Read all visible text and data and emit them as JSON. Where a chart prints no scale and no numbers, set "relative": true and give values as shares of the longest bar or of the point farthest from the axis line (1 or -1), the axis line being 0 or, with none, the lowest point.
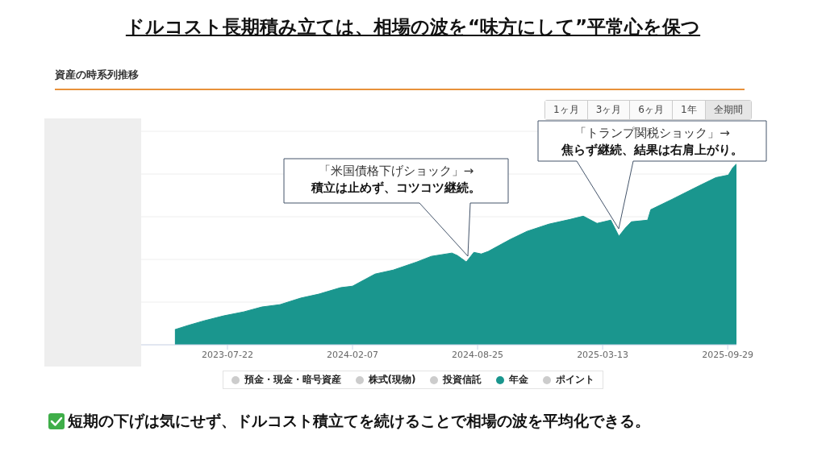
{
  "chart_data": {
    "type": "area",
    "title": "ドルコスト長期積み立ては、相場の波を“味方にして”平常心を保つ",
    "subtitle": "資産の時系列推移",
    "relative": true,
    "grid": "y",
    "legend": "bottom",
    "xlim": [
      "2023-03-06",
      "2025-10-13"
    ],
    "xticks": [
      "2023-07-22",
      "2024-02-07",
      "2024-08-25",
      "2025-03-13",
      "2025-09-29"
    ],
    "x": [
      "2023-04-29",
      "2023-05-20",
      "2023-06-15",
      "2023-07-16",
      "2023-08-17",
      "2023-09-15",
      "2023-10-14",
      "2023-11-16",
      "2023-12-15",
      "2024-01-19",
      "2024-02-07",
      "2024-03-14",
      "2024-04-12",
      "2024-05-20",
      "2024-06-12",
      "2024-07-15",
      "2024-07-24",
      "2024-08-07",
      "2024-08-19",
      "2024-08-31",
      "2024-09-11",
      "2024-10-16",
      "2024-11-12",
      "2024-12-17",
      "2025-01-20",
      "2025-02-10",
      "2025-03-04",
      "2025-03-26",
      "2025-04-08",
      "2025-04-18",
      "2025-04-28",
      "2025-05-24",
      "2025-05-29",
      "2025-07-02",
      "2025-07-28",
      "2025-08-15",
      "2025-09-10",
      "2025-09-30",
      "2025-10-07",
      "2025-10-13"
    ],
    "series": [
      {
        "name": "預金・現金・暗号資産",
        "color": "#cccccc",
        "values": [
          null,
          null,
          null,
          null,
          null,
          null,
          null,
          null,
          null,
          null,
          null,
          null,
          null,
          null,
          null,
          null,
          null,
          null,
          null,
          null,
          null,
          null,
          null,
          null,
          null,
          null,
          null,
          null,
          null,
          null,
          null,
          null,
          null,
          null,
          null,
          null,
          null,
          null,
          null,
          null
        ]
      },
      {
        "name": "株式(現物)",
        "color": "#cccccc",
        "values": [
          null,
          null,
          null,
          null,
          null,
          null,
          null,
          null,
          null,
          null,
          null,
          null,
          null,
          null,
          null,
          null,
          null,
          null,
          null,
          null,
          null,
          null,
          null,
          null,
          null,
          null,
          null,
          null,
          null,
          null,
          null,
          null,
          null,
          null,
          null,
          null,
          null,
          null,
          null,
          null
        ]
      },
      {
        "name": "投資信託",
        "color": "#cccccc",
        "values": [
          null,
          null,
          null,
          null,
          null,
          null,
          null,
          null,
          null,
          null,
          null,
          null,
          null,
          null,
          null,
          null,
          null,
          null,
          null,
          null,
          null,
          null,
          null,
          null,
          null,
          null,
          null,
          null,
          null,
          null,
          null,
          null,
          null,
          null,
          null,
          null,
          null,
          null,
          null,
          null
        ]
      },
      {
        "name": "年金",
        "color": "#1a968e",
        "values": [
          0.084,
          0.107,
          0.133,
          0.16,
          0.182,
          0.209,
          0.222,
          0.258,
          0.28,
          0.316,
          0.324,
          0.391,
          0.413,
          0.458,
          0.489,
          0.507,
          0.493,
          0.458,
          0.511,
          0.502,
          0.516,
          0.582,
          0.627,
          0.667,
          0.693,
          0.711,
          0.671,
          0.689,
          0.6,
          0.644,
          0.68,
          0.689,
          0.747,
          0.804,
          0.849,
          0.88,
          0.924,
          0.938,
          0.978,
          1
        ]
      },
      {
        "name": "ポイント",
        "color": "#cccccc",
        "values": [
          null,
          null,
          null,
          null,
          null,
          null,
          null,
          null,
          null,
          null,
          null,
          null,
          null,
          null,
          null,
          null,
          null,
          null,
          null,
          null,
          null,
          null,
          null,
          null,
          null,
          null,
          null,
          null,
          null,
          null,
          null,
          null,
          null,
          null,
          null,
          null,
          null,
          null,
          null,
          null
        ]
      }
    ],
    "annotations": [
      "短期の下げは気にせず、ドルコスト積立てを続けることで相場の波を平均化できる。",
      "「米国債格下げショック」→\n積立は止めず、コツコツ継続。",
      "「トランプ関税ショック」→\n焦らず継続、結果は右肩上がり。",
      "1ヶ月",
      "3ヶ月",
      "6ヶ月",
      "1年",
      "全期間"
    ]
  }
}
